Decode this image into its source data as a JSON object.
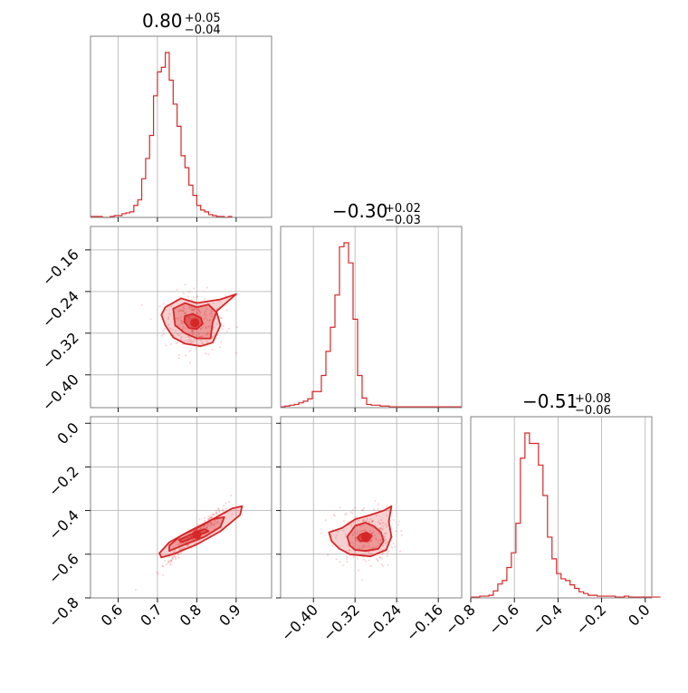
{
  "colors": {
    "accent": "#d62728",
    "frame": "#808080",
    "grid": "#b0b0b0"
  },
  "chart_data": {
    "type": "corner",
    "parameters": [
      "",
      "",
      ""
    ],
    "titles": [
      {
        "value": "0.80",
        "plus": "+0.05",
        "minus": "−0.04"
      },
      {
        "value": "−0.30",
        "plus": "+0.02",
        "minus": "−0.03"
      },
      {
        "value": "−0.51",
        "plus": "+0.08",
        "minus": "−0.06"
      }
    ],
    "ranges": [
      [
        0.53,
        0.99
      ],
      [
        -0.463,
        -0.115
      ],
      [
        -0.8,
        0.03
      ]
    ],
    "ticks": [
      {
        "values": [
          0.6,
          0.7,
          0.8,
          0.9
        ],
        "labels": [
          "0.6",
          "0.7",
          "0.8",
          "0.9"
        ]
      },
      {
        "values": [
          -0.4,
          -0.32,
          -0.24,
          -0.16
        ],
        "labels": [
          "−0.40",
          "−0.32",
          "−0.24",
          "−0.16"
        ]
      },
      {
        "values": [
          -0.8,
          -0.6,
          -0.4,
          -0.2,
          0.0
        ],
        "labels": [
          "−0.8",
          "−0.6",
          "−0.4",
          "−0.2",
          "0.0"
        ]
      }
    ],
    "histograms": [
      {
        "param": 0,
        "bin_start": 0.53,
        "bin_width": 0.01,
        "counts": [
          1,
          1,
          1,
          0,
          0,
          1,
          2,
          2,
          4,
          5,
          6,
          13,
          19,
          42,
          64,
          89,
          132,
          158,
          163,
          179,
          149,
          123,
          99,
          67,
          54,
          35,
          24,
          13,
          8,
          6,
          3,
          2,
          1,
          1,
          0,
          1
        ]
      },
      {
        "param": 1,
        "bin_start": -0.463,
        "bin_width": 0.0087,
        "counts": [
          1,
          2,
          3,
          4,
          6,
          8,
          11,
          20,
          20,
          40,
          70,
          100,
          140,
          200,
          205,
          180,
          110,
          40,
          12,
          4,
          3,
          3,
          2,
          2,
          1,
          1,
          1,
          1,
          1,
          1,
          1,
          1,
          1,
          1,
          1,
          1,
          1,
          1,
          1,
          1
        ]
      },
      {
        "param": 2,
        "bin_start": -0.8,
        "bin_width": 0.0207,
        "counts": [
          1,
          1,
          2,
          2,
          3,
          8,
          16,
          20,
          35,
          52,
          86,
          161,
          190,
          178,
          178,
          153,
          118,
          70,
          45,
          28,
          22,
          20,
          15,
          11,
          7,
          5,
          3,
          3,
          2,
          2,
          2,
          2,
          1,
          1,
          2,
          1,
          1,
          1,
          1,
          1,
          1,
          1
        ]
      }
    ],
    "pairs": [
      {
        "x_param": 0,
        "y_param": 1,
        "peak": [
          0.795,
          -0.3
        ],
        "contours": [
          [
            [
              0.77,
              -0.287
            ],
            [
              0.79,
              -0.283
            ],
            [
              0.81,
              -0.29
            ],
            [
              0.815,
              -0.302
            ],
            [
              0.8,
              -0.312
            ],
            [
              0.78,
              -0.31
            ],
            [
              0.768,
              -0.298
            ]
          ],
          [
            [
              0.74,
              -0.273
            ],
            [
              0.77,
              -0.262
            ],
            [
              0.8,
              -0.27
            ],
            [
              0.83,
              -0.265
            ],
            [
              0.85,
              -0.28
            ],
            [
              0.84,
              -0.3
            ],
            [
              0.835,
              -0.33
            ],
            [
              0.8,
              -0.33
            ],
            [
              0.77,
              -0.32
            ],
            [
              0.745,
              -0.305
            ]
          ],
          [
            [
              0.72,
              -0.27
            ],
            [
              0.76,
              -0.253
            ],
            [
              0.8,
              -0.262
            ],
            [
              0.86,
              -0.255
            ],
            [
              0.9,
              -0.245
            ],
            [
              0.85,
              -0.278
            ],
            [
              0.86,
              -0.305
            ],
            [
              0.84,
              -0.338
            ],
            [
              0.81,
              -0.345
            ],
            [
              0.77,
              -0.34
            ],
            [
              0.74,
              -0.328
            ],
            [
              0.72,
              -0.305
            ],
            [
              0.71,
              -0.285
            ]
          ]
        ]
      },
      {
        "x_param": 0,
        "y_param": 2,
        "peak": [
          0.8,
          -0.51
        ],
        "contours": [
          [
            [
              0.76,
              -0.545
            ],
            [
              0.79,
              -0.525
            ],
            [
              0.83,
              -0.495
            ],
            [
              0.82,
              -0.485
            ],
            [
              0.79,
              -0.505
            ],
            [
              0.755,
              -0.535
            ]
          ],
          [
            [
              0.73,
              -0.585
            ],
            [
              0.77,
              -0.555
            ],
            [
              0.82,
              -0.52
            ],
            [
              0.86,
              -0.475
            ],
            [
              0.87,
              -0.43
            ],
            [
              0.84,
              -0.44
            ],
            [
              0.8,
              -0.48
            ],
            [
              0.76,
              -0.515
            ],
            [
              0.73,
              -0.56
            ]
          ],
          [
            [
              0.71,
              -0.615
            ],
            [
              0.74,
              -0.6
            ],
            [
              0.8,
              -0.555
            ],
            [
              0.86,
              -0.495
            ],
            [
              0.91,
              -0.42
            ],
            [
              0.915,
              -0.38
            ],
            [
              0.89,
              -0.39
            ],
            [
              0.84,
              -0.44
            ],
            [
              0.78,
              -0.495
            ],
            [
              0.73,
              -0.545
            ],
            [
              0.705,
              -0.595
            ]
          ]
        ]
      },
      {
        "x_param": 1,
        "y_param": 2,
        "peak": [
          -0.3,
          -0.52
        ],
        "contours": [
          [
            [
              -0.31,
              -0.51
            ],
            [
              -0.298,
              -0.5
            ],
            [
              -0.288,
              -0.515
            ],
            [
              -0.295,
              -0.54
            ],
            [
              -0.31,
              -0.54
            ],
            [
              -0.315,
              -0.525
            ]
          ],
          [
            [
              -0.33,
              -0.56
            ],
            [
              -0.335,
              -0.52
            ],
            [
              -0.32,
              -0.47
            ],
            [
              -0.3,
              -0.455
            ],
            [
              -0.285,
              -0.47
            ],
            [
              -0.27,
              -0.5
            ],
            [
              -0.265,
              -0.54
            ],
            [
              -0.275,
              -0.575
            ],
            [
              -0.3,
              -0.585
            ],
            [
              -0.32,
              -0.58
            ]
          ],
          [
            [
              -0.365,
              -0.54
            ],
            [
              -0.37,
              -0.5
            ],
            [
              -0.345,
              -0.48
            ],
            [
              -0.32,
              -0.44
            ],
            [
              -0.29,
              -0.42
            ],
            [
              -0.265,
              -0.4
            ],
            [
              -0.25,
              -0.38
            ],
            [
              -0.255,
              -0.45
            ],
            [
              -0.25,
              -0.52
            ],
            [
              -0.26,
              -0.58
            ],
            [
              -0.29,
              -0.61
            ],
            [
              -0.33,
              -0.6
            ],
            [
              -0.35,
              -0.575
            ]
          ]
        ]
      }
    ],
    "grid": true
  }
}
